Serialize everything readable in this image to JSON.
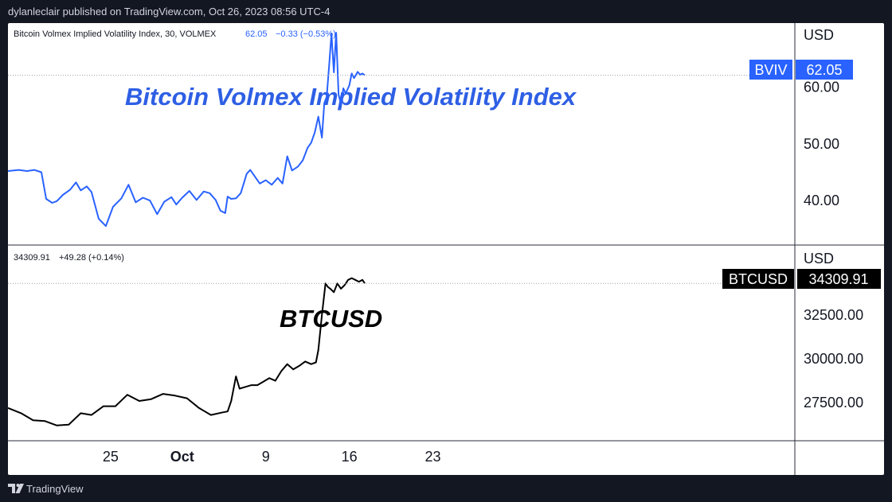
{
  "header": {
    "credit": "dylanleclair published on TradingView.com, Oct 26, 2023 08:56 UTC-4"
  },
  "footer": {
    "brand": "TradingView"
  },
  "colors": {
    "bviv": "#2962ff",
    "bviv_title": "#2e5fe4",
    "btc": "#000000",
    "axis_text": "#131722",
    "dotted": "#9aa0ab"
  },
  "icons": {
    "footer_logo": "tradingview-logo-icon"
  },
  "chart_data": [
    {
      "type": "line",
      "legend": "Bitcoin Volmex Implied Volatility Index, 30, VOLMEX",
      "legend_value": "62.05",
      "legend_change": "−0.33 (−0.53%)",
      "annotation": "Bitcoin Volmex Implied Volatility Index",
      "currency_label": "USD",
      "price_tag": {
        "name": "BVIV",
        "value": "62.05"
      },
      "y_ticks": [
        "60.00",
        "50.00",
        "40.00"
      ],
      "ylim": [
        32.3,
        71.3
      ],
      "series": [
        {
          "x": [
            -3.4,
            -2.5,
            -1.8,
            -1.2,
            -0.6,
            -0.2,
            0.3,
            0.7,
            1.2,
            1.8,
            2.3,
            2.7,
            3.2,
            3.6,
            4.2,
            4.8,
            5.4,
            6.1,
            6.7,
            7.3,
            7.9,
            8.5,
            9.1,
            9.7,
            10.3,
            10.7,
            11.2,
            11.8,
            12.4,
            13.0,
            13.5,
            14.0,
            14.4,
            14.8,
            15.0,
            15.3,
            15.7,
            16.1,
            16.6,
            16.9,
            17.3,
            17.7,
            18.2,
            18.7,
            19.2,
            19.6,
            20.0,
            20.4,
            20.9,
            21.3,
            21.7,
            22.0,
            22.3,
            22.6,
            22.9,
            23.1,
            23.3,
            23.5,
            23.7,
            23.9,
            24.1,
            24.3,
            24.5,
            24.7,
            24.9,
            25.2,
            25.4,
            25.6,
            25.9,
            26.1,
            26.3,
            26.5
          ],
          "y": [
            45.2,
            45.4,
            45.2,
            45.4,
            45.0,
            40.3,
            39.6,
            39.9,
            41.0,
            41.9,
            43.2,
            41.8,
            42.5,
            41.5,
            36.8,
            35.5,
            38.9,
            40.4,
            42.8,
            39.7,
            40.5,
            40.0,
            37.6,
            39.8,
            40.6,
            39.3,
            40.5,
            41.7,
            40.1,
            41.6,
            41.3,
            40.1,
            38.2,
            37.8,
            40.7,
            40.3,
            40.4,
            41.3,
            44.7,
            45.4,
            44.2,
            43.0,
            43.6,
            42.8,
            44.0,
            43.0,
            47.8,
            45.3,
            46.0,
            47.1,
            49.3,
            50.2,
            52.0,
            54.8,
            51.1,
            57.2,
            58.3,
            63.7,
            69.4,
            62.6,
            69.6,
            58.7,
            57.0,
            59.8,
            58.9,
            60.3,
            62.4,
            61.6,
            62.7,
            62.2,
            62.4,
            62.1
          ]
        }
      ]
    },
    {
      "type": "line",
      "legend_value": "34309.91",
      "legend_change": "+49.28 (+0.14%)",
      "annotation": "BTCUSD",
      "currency_label": "USD",
      "price_tag": {
        "name": "BTCUSD",
        "value": "34309.91"
      },
      "y_ticks": [
        "32500.00",
        "30000.00",
        "27500.00"
      ],
      "ylim": [
        25375,
        36489
      ],
      "x_ticks": [
        {
          "x": 25,
          "label": "25",
          "bold": false
        },
        {
          "x": 31,
          "label": "Oct",
          "bold": true
        },
        {
          "x": 38,
          "label": "9",
          "bold": false
        },
        {
          "x": 45,
          "label": "16",
          "bold": false
        },
        {
          "x": 52,
          "label": "23",
          "bold": false
        }
      ],
      "series": [
        {
          "x": [
            -3.4,
            -2.3,
            -1.3,
            -0.3,
            0.7,
            1.7,
            2.7,
            3.6,
            4.6,
            5.6,
            6.6,
            7.6,
            8.6,
            9.6,
            10.6,
            11.6,
            12.6,
            13.6,
            14.6,
            15.0,
            15.3,
            15.7,
            16.0,
            16.5,
            17.0,
            17.5,
            18.0,
            18.5,
            19.0,
            19.5,
            20.0,
            20.5,
            21.0,
            21.5,
            22.0,
            22.4,
            22.6,
            22.9,
            23.2,
            23.4,
            23.6,
            23.9,
            24.2,
            24.5,
            24.8,
            25.1,
            25.4,
            25.7,
            26.0,
            26.3,
            26.5
          ],
          "y": [
            27200,
            26900,
            26500,
            26450,
            26200,
            26250,
            26900,
            26800,
            27300,
            27300,
            27950,
            27600,
            27700,
            28000,
            27900,
            27750,
            27200,
            26800,
            26950,
            27000,
            27600,
            29000,
            28300,
            28400,
            28500,
            28500,
            28700,
            28900,
            28750,
            29300,
            29700,
            29400,
            29600,
            29850,
            29700,
            29800,
            30500,
            32500,
            34300,
            34100,
            34000,
            33800,
            34300,
            34000,
            34200,
            34500,
            34600,
            34500,
            34400,
            34500,
            34300
          ]
        }
      ]
    }
  ]
}
